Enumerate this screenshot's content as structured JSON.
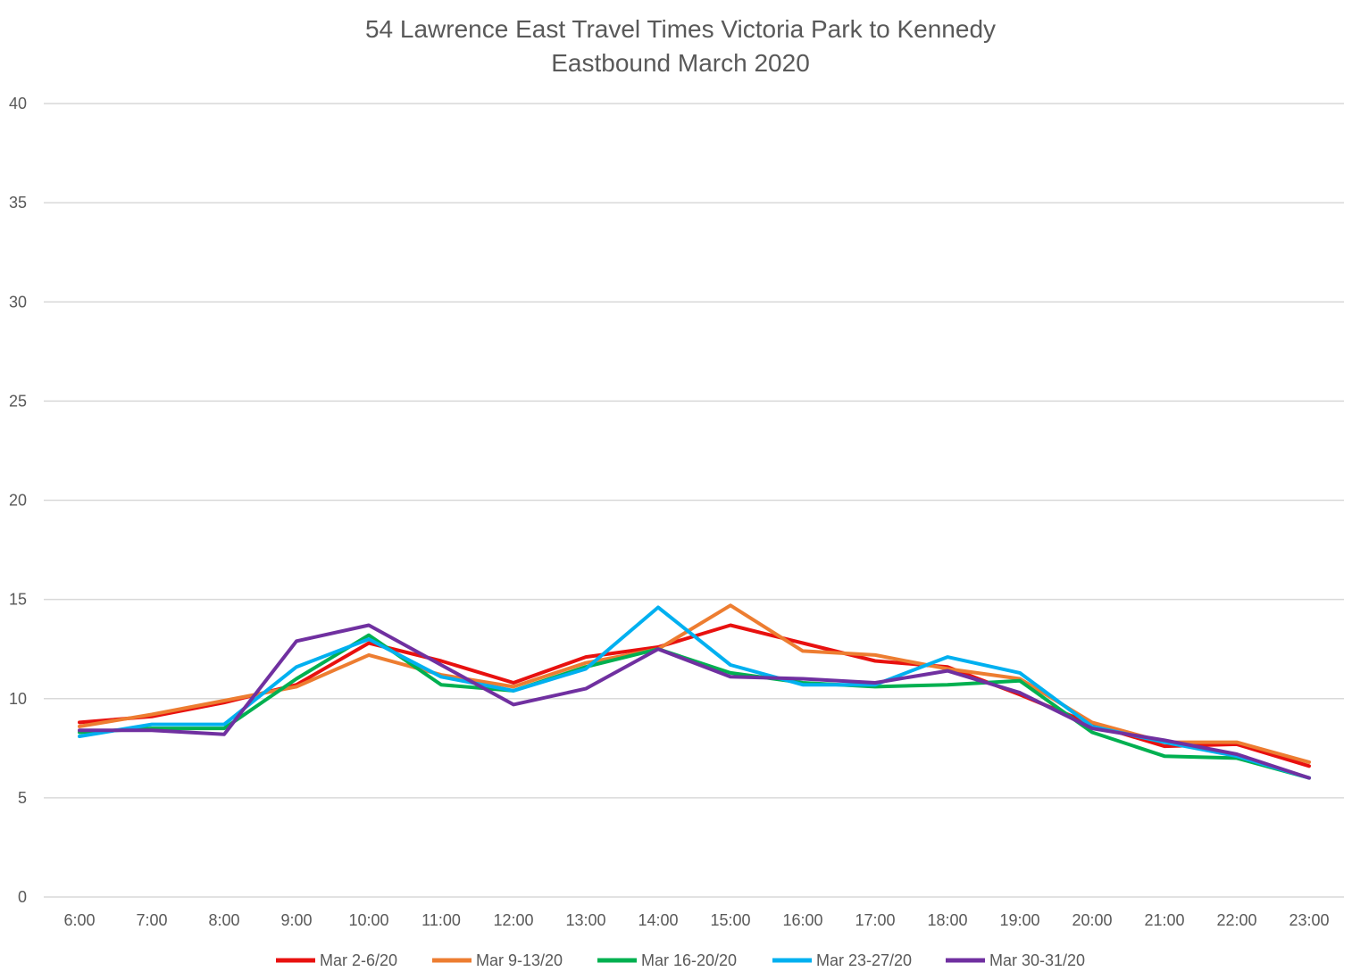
{
  "chart_data": {
    "type": "line",
    "title": "54 Lawrence East Travel Times Victoria Park to Kennedy",
    "subtitle": "Eastbound  March 2020",
    "xlabel": "",
    "ylabel": "",
    "ylim": [
      0,
      40
    ],
    "yticks": [
      0,
      5,
      10,
      15,
      20,
      25,
      30,
      35,
      40
    ],
    "grid": true,
    "legend_position": "bottom",
    "categories": [
      "6:00",
      "7:00",
      "8:00",
      "9:00",
      "10:00",
      "11:00",
      "12:00",
      "13:00",
      "14:00",
      "15:00",
      "16:00",
      "17:00",
      "18:00",
      "19:00",
      "20:00",
      "21:00",
      "22:00",
      "23:00"
    ],
    "series": [
      {
        "name": "Mar 2-6/20",
        "color": "#e8110f",
        "values": [
          8.8,
          9.1,
          9.8,
          10.7,
          12.8,
          11.9,
          10.8,
          12.1,
          12.6,
          13.7,
          12.8,
          11.9,
          11.6,
          10.2,
          8.7,
          7.6,
          7.7,
          6.6
        ]
      },
      {
        "name": "Mar 9-13/20",
        "color": "#ed7d31",
        "values": [
          8.6,
          9.2,
          9.9,
          10.6,
          12.2,
          11.2,
          10.6,
          11.8,
          12.5,
          14.7,
          12.4,
          12.2,
          11.5,
          11.0,
          8.8,
          7.8,
          7.8,
          6.8
        ]
      },
      {
        "name": "Mar 16-20/20",
        "color": "#00b050",
        "values": [
          8.3,
          8.5,
          8.5,
          11.0,
          13.2,
          10.7,
          10.4,
          11.6,
          12.5,
          11.3,
          10.8,
          10.6,
          10.7,
          10.9,
          8.3,
          7.1,
          7.0,
          6.0
        ]
      },
      {
        "name": "Mar 23-27/20",
        "color": "#00b0f0",
        "values": [
          8.1,
          8.7,
          8.7,
          11.6,
          13.0,
          11.1,
          10.4,
          11.5,
          14.6,
          11.7,
          10.7,
          10.7,
          12.1,
          11.3,
          8.6,
          7.8,
          7.1,
          6.0
        ]
      },
      {
        "name": "Mar 30-31/20",
        "color": "#7030a0",
        "values": [
          8.4,
          8.4,
          8.2,
          12.9,
          13.7,
          11.7,
          9.7,
          10.5,
          12.5,
          11.1,
          11.0,
          10.8,
          11.4,
          10.3,
          8.5,
          7.9,
          7.2,
          6.0
        ]
      }
    ]
  }
}
